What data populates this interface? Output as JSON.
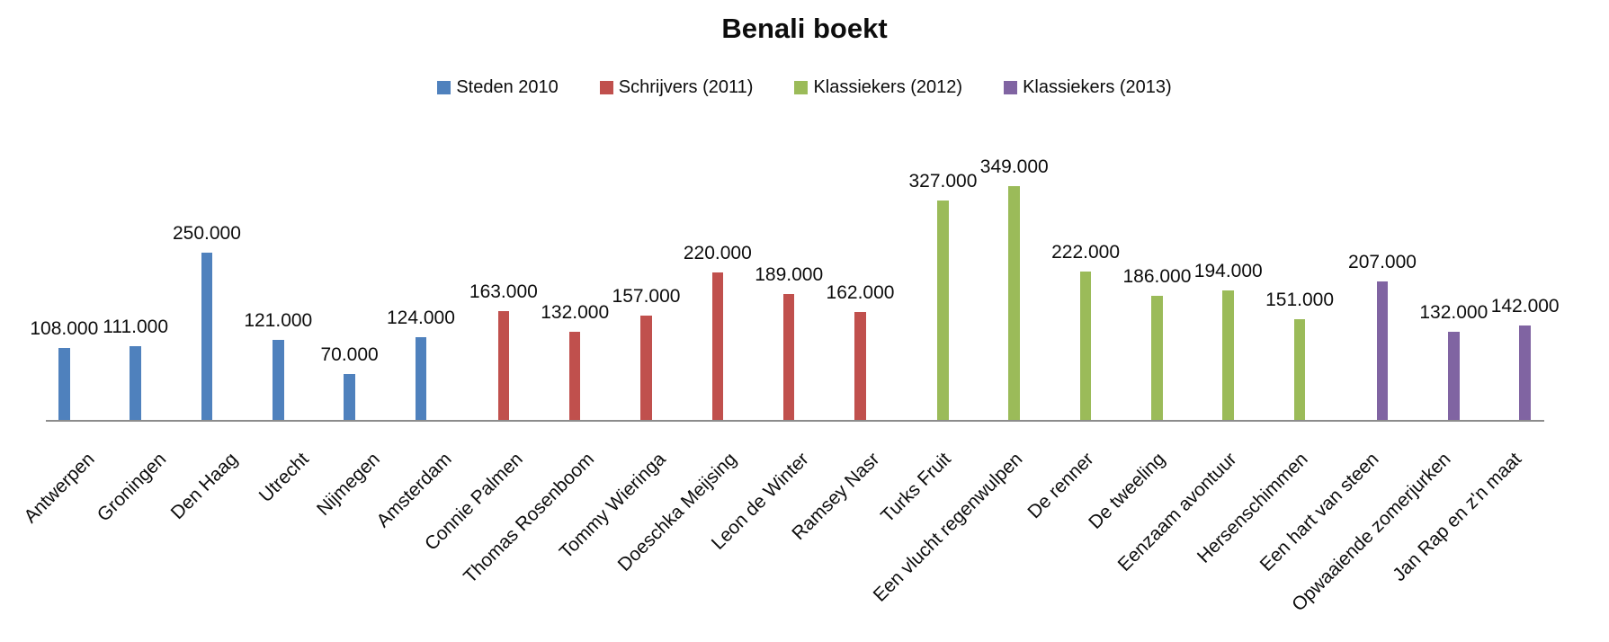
{
  "chart_data": {
    "type": "bar",
    "title": "Benali boekt",
    "legend_position": "top",
    "grid": false,
    "y_axis_visible": false,
    "x_axis_label_rotation_deg": 45,
    "ylim": [
      0,
      349000
    ],
    "axis_line_color": "#8C8C8C",
    "value_labels_shown": true,
    "series": [
      {
        "name": "Steden 2010",
        "color": "#4F81BD"
      },
      {
        "name": "Schrijvers (2011)",
        "color": "#C0504D"
      },
      {
        "name": "Klassiekers (2012)",
        "color": "#9BBB59"
      },
      {
        "name": "Klassiekers (2013)",
        "color": "#8064A2"
      }
    ],
    "bars": [
      {
        "category": "Antwerpen",
        "series": "Steden 2010",
        "value": 108000,
        "label": "108.000"
      },
      {
        "category": "Groningen",
        "series": "Steden 2010",
        "value": 111000,
        "label": "111.000"
      },
      {
        "category": "Den Haag",
        "series": "Steden 2010",
        "value": 250000,
        "label": "250.000"
      },
      {
        "category": "Utrecht",
        "series": "Steden 2010",
        "value": 121000,
        "label": "121.000"
      },
      {
        "category": "Nijmegen",
        "series": "Steden 2010",
        "value": 70000,
        "label": "70.000"
      },
      {
        "category": "Amsterdam",
        "series": "Steden 2010",
        "value": 124000,
        "label": "124.000"
      },
      {
        "category": "Connie Palmen",
        "series": "Schrijvers (2011)",
        "value": 163000,
        "label": "163.000"
      },
      {
        "category": "Thomas Rosenboom",
        "series": "Schrijvers (2011)",
        "value": 132000,
        "label": "132.000"
      },
      {
        "category": "Tommy Wieringa",
        "series": "Schrijvers (2011)",
        "value": 157000,
        "label": "157.000"
      },
      {
        "category": "Doeschka Meijsing",
        "series": "Schrijvers (2011)",
        "value": 220000,
        "label": "220.000"
      },
      {
        "category": "Leon de Winter",
        "series": "Schrijvers (2011)",
        "value": 189000,
        "label": "189.000"
      },
      {
        "category": "Ramsey Nasr",
        "series": "Schrijvers (2011)",
        "value": 162000,
        "label": "162.000"
      },
      {
        "category": "Turks Fruit",
        "series": "Klassiekers (2012)",
        "value": 327000,
        "label": "327.000"
      },
      {
        "category": "Een vlucht regenwulpen",
        "series": "Klassiekers (2012)",
        "value": 349000,
        "label": "349.000"
      },
      {
        "category": "De renner",
        "series": "Klassiekers (2012)",
        "value": 222000,
        "label": "222.000"
      },
      {
        "category": "De tweeling",
        "series": "Klassiekers (2012)",
        "value": 186000,
        "label": "186.000"
      },
      {
        "category": "Eenzaam avontuur",
        "series": "Klassiekers (2012)",
        "value": 194000,
        "label": "194.000"
      },
      {
        "category": "Hersenschimmen",
        "series": "Klassiekers (2012)",
        "value": 151000,
        "label": "151.000"
      },
      {
        "category": "Een hart van steen",
        "series": "Klassiekers (2013)",
        "value": 207000,
        "label": "207.000"
      },
      {
        "category": "Opwaaiende zomerjurken",
        "series": "Klassiekers (2013)",
        "value": 132000,
        "label": "132.000"
      },
      {
        "category": "Jan Rap en z'n maat",
        "series": "Klassiekers (2013)",
        "value": 142000,
        "label": "142.000"
      }
    ]
  }
}
